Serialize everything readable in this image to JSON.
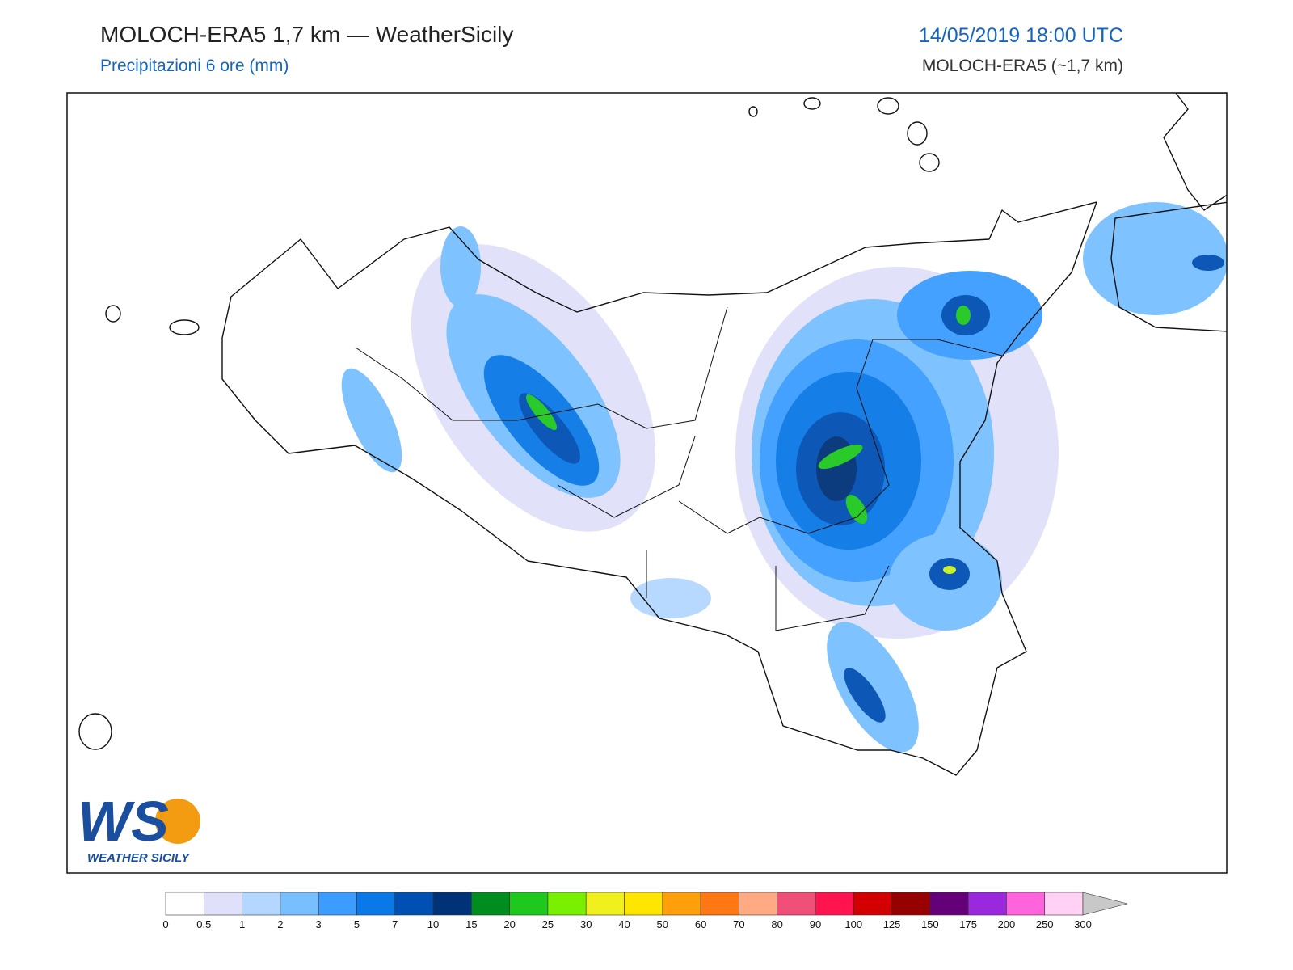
{
  "header": {
    "title": "MOLOCH-ERA5 1,7 km — WeatherSicily",
    "subtitle": "Precipitazioni 6 ore (mm)",
    "datetime": "14/05/2019 18:00 UTC",
    "model": "MOLOCH-ERA5 (~1,7 km)"
  },
  "logo": {
    "mark": "WS",
    "text": "WEATHER SICILY"
  },
  "colorbar": {
    "ticks": [
      0,
      0.5,
      1,
      2,
      3,
      5,
      7,
      10,
      15,
      20,
      25,
      30,
      40,
      50,
      60,
      70,
      80,
      90,
      100,
      125,
      150,
      175,
      200,
      250,
      300
    ],
    "colors": [
      "#ffffff",
      "#e0e0fa",
      "#b4d7ff",
      "#78bfff",
      "#3c9cff",
      "#0a78e6",
      "#0050b4",
      "#003278",
      "#008c1e",
      "#1ec81e",
      "#78f000",
      "#f0f01e",
      "#ffe600",
      "#ffa00a",
      "#ff7814",
      "#ffaa82",
      "#f05078",
      "#ff1450",
      "#d20000",
      "#960000",
      "#640078",
      "#9a28dc",
      "#ff64dc",
      "#ffd2f5"
    ],
    "over_color": "#c8c8c8"
  }
}
